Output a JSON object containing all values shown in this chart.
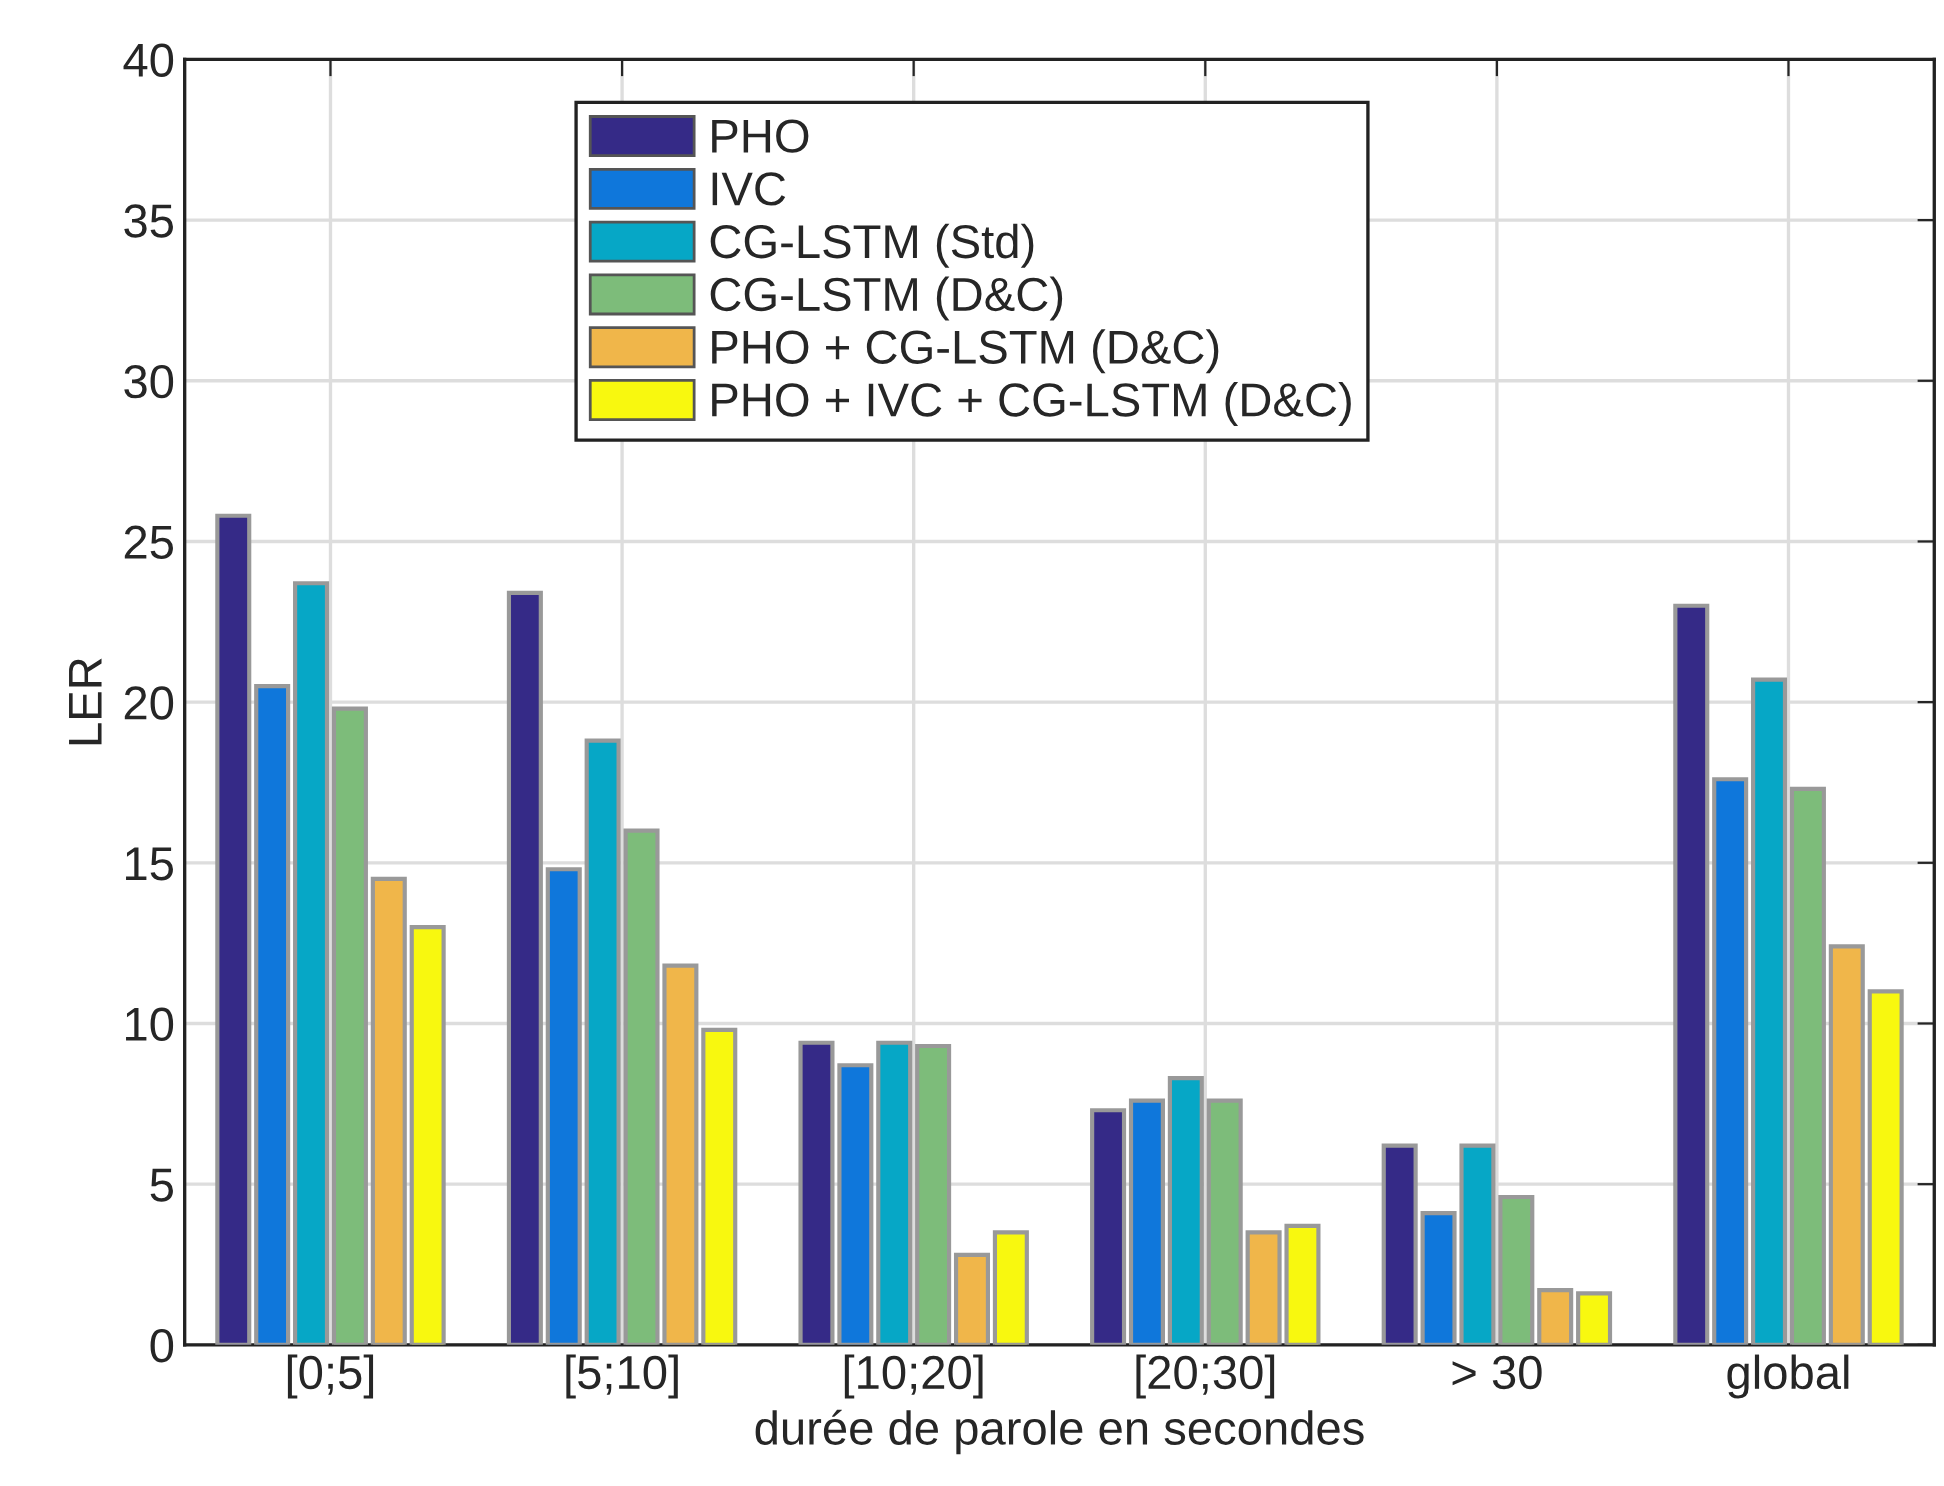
{
  "chart_data": {
    "type": "bar",
    "xlabel": "durée de parole en secondes",
    "ylabel": "LER",
    "categories": [
      "[0;5]",
      "[5;10]",
      "[10;20]",
      "[20;30]",
      "> 30",
      "global"
    ],
    "series": [
      {
        "name": "PHO",
        "color": "#352a87",
        "values": [
          25.8,
          23.4,
          9.4,
          7.3,
          6.2,
          23.0
        ]
      },
      {
        "name": "IVC",
        "color": "#0f77db",
        "values": [
          20.5,
          14.8,
          8.7,
          7.6,
          4.1,
          17.6
        ]
      },
      {
        "name": "CG-LSTM (Std)",
        "color": "#06a7c6",
        "values": [
          23.7,
          18.8,
          9.4,
          8.3,
          6.2,
          20.7
        ]
      },
      {
        "name": "CG-LSTM (D&C)",
        "color": "#7dbc7a",
        "values": [
          19.8,
          16.0,
          9.3,
          7.6,
          4.6,
          17.3
        ]
      },
      {
        "name": "PHO + CG-LSTM (D&C)",
        "color": "#f0b64a",
        "values": [
          14.5,
          11.8,
          2.8,
          3.5,
          1.7,
          12.4
        ]
      },
      {
        "name": "PHO + IVC + CG-LSTM (D&C)",
        "color": "#f8f80f",
        "values": [
          13.0,
          9.8,
          3.5,
          3.7,
          1.6,
          11.0
        ]
      }
    ],
    "ylim": [
      0,
      40
    ],
    "yticks": [
      0,
      5,
      10,
      15,
      20,
      25,
      30,
      35,
      40
    ],
    "grid": true,
    "legend": "top"
  }
}
